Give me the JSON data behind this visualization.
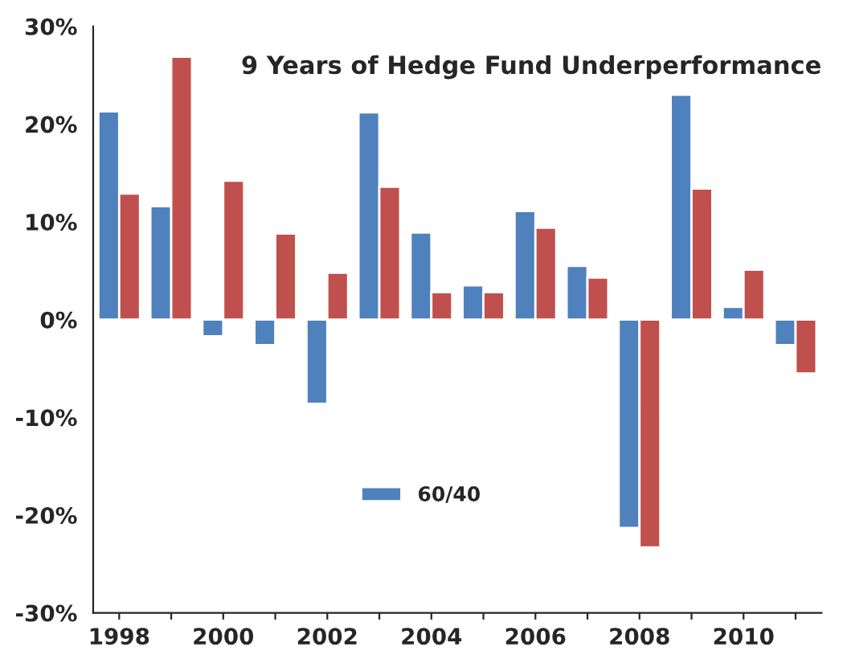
{
  "chart_data": {
    "type": "bar",
    "title": "9 Years of Hedge Fund Underperformance",
    "categories": [
      "1998",
      null,
      "2000",
      null,
      "2002",
      null,
      "2004",
      null,
      "2006",
      null,
      "2008",
      null,
      "2010",
      null
    ],
    "series": [
      {
        "name": "60/40",
        "color": "#4f81bd",
        "values": [
          21.3,
          11.6,
          -1.7,
          -2.6,
          -8.6,
          21.2,
          8.9,
          3.5,
          11.1,
          5.5,
          -21.3,
          23.0,
          1.3,
          -2.6
        ]
      },
      {
        "color": "#c0504d",
        "values": [
          12.9,
          26.9,
          14.2,
          8.8,
          4.8,
          13.6,
          2.8,
          2.8,
          9.4,
          4.3,
          -23.3,
          13.4,
          5.1,
          -5.5
        ]
      }
    ],
    "ylim": [
      -30,
      30
    ],
    "yticks": [
      {
        "value": -30,
        "label": "-30%"
      },
      {
        "value": -20,
        "label": "-20%"
      },
      {
        "value": -10,
        "label": "-10%"
      },
      {
        "value": 0,
        "label": "0%"
      },
      {
        "value": 10,
        "label": "10%"
      },
      {
        "value": 20,
        "label": "20%"
      },
      {
        "value": 30,
        "label": "30%"
      }
    ],
    "grid": false,
    "legend": "center"
  }
}
